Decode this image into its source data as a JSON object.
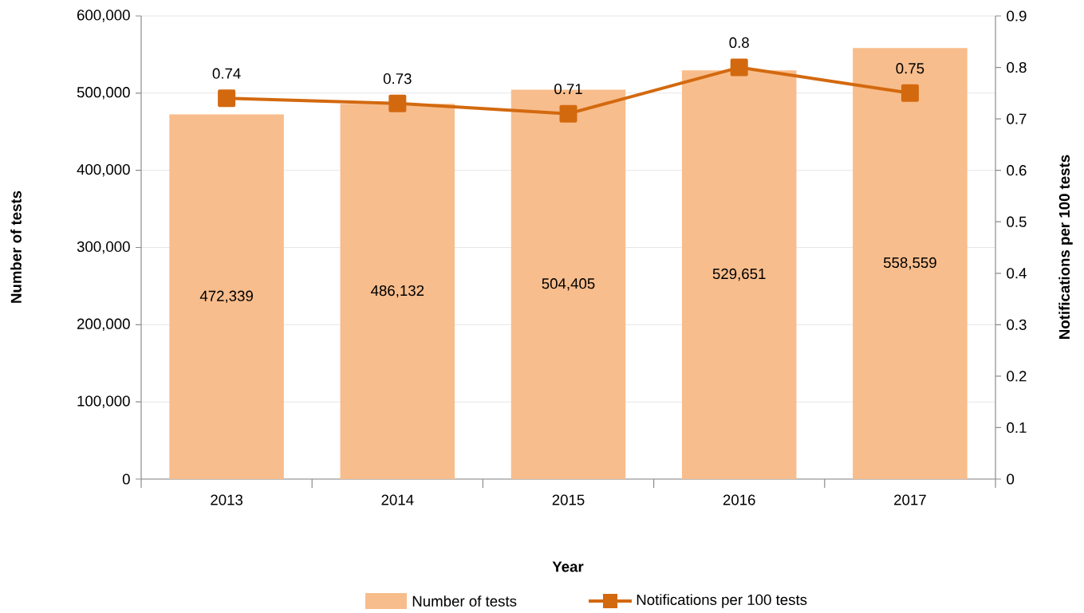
{
  "chart_data": {
    "type": "bar",
    "categories": [
      "2013",
      "2014",
      "2015",
      "2016",
      "2017"
    ],
    "xlabel": "Year",
    "ylabel": "Number of tests",
    "y2label": "Notifications per 100 tests",
    "series": [
      {
        "name": "Number of tests",
        "color": "#f8bd8c",
        "values": [
          472339,
          486132,
          504405,
          529651,
          558559
        ],
        "value_labels": [
          "472,339",
          "486,132",
          "504,405",
          "529,651",
          "558,559"
        ]
      },
      {
        "name": "Notifications per 100 tests",
        "type": "line",
        "axis": "y2",
        "color": "#d3690f",
        "marker": "square",
        "values": [
          0.74,
          0.73,
          0.71,
          0.8,
          0.75
        ],
        "value_labels": [
          "0.74",
          "0.73",
          "0.71",
          "0.8",
          "0.75"
        ]
      }
    ],
    "ylim": [
      0,
      600000
    ],
    "yticks": [
      0,
      {
        "value": 100000,
        "label": "100,000"
      },
      {
        "value": 200000,
        "label": "200,000"
      },
      {
        "value": 300000,
        "label": "300,000"
      },
      {
        "value": 400000,
        "label": "400,000"
      },
      {
        "value": 500000,
        "label": "500,000"
      },
      {
        "value": 600000,
        "label": "600,000"
      }
    ],
    "y2lim": [
      0,
      0.9
    ],
    "y2ticks": [
      0,
      0.1,
      0.2,
      0.3,
      0.4,
      0.5,
      0.6,
      0.7,
      0.8,
      0.9
    ],
    "grid": "y",
    "legend": "bottom"
  }
}
